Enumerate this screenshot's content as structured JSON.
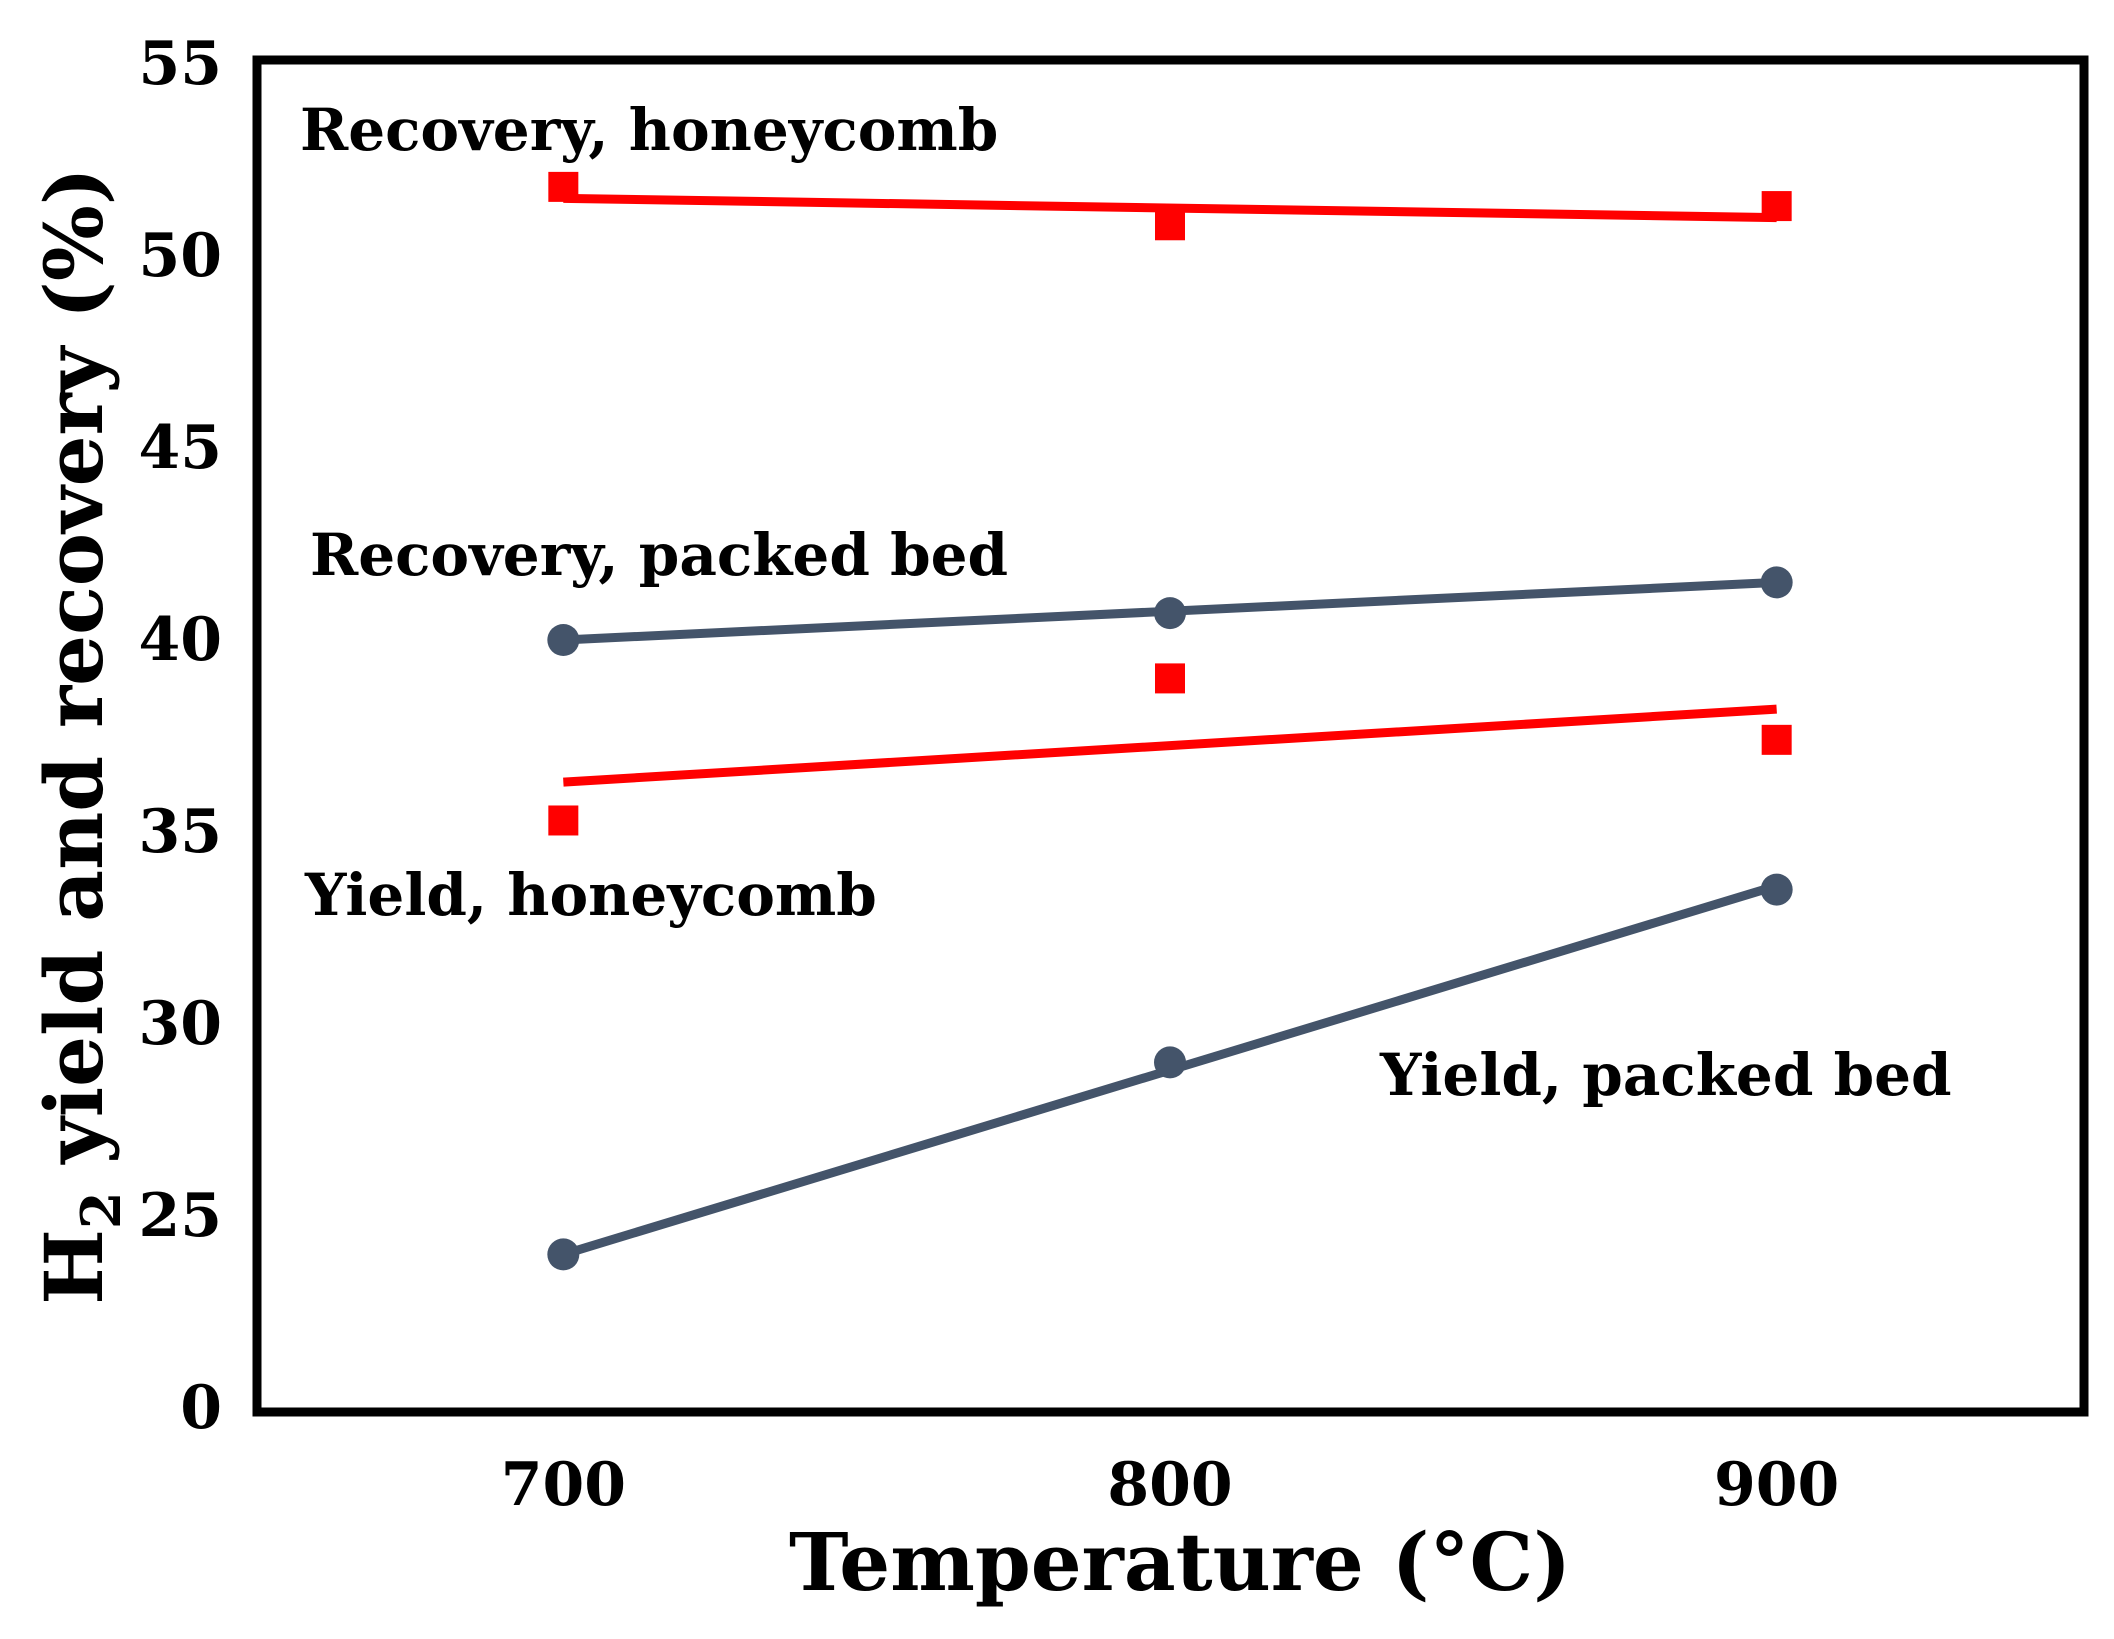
{
  "chart_data": {
    "type": "scatter",
    "title": "",
    "xlabel": "Temperature (°C)",
    "ylabel": {
      "prefix": "H",
      "subscript": "2",
      "suffix": " yield and recovery (%)"
    },
    "x_ticks": [
      "700",
      "800",
      "900"
    ],
    "y_ticks": [
      "0",
      "25",
      "30",
      "35",
      "40",
      "45",
      "50",
      "55"
    ],
    "y_axis_break": {
      "shown_as": "0",
      "at_position_of": 20
    },
    "xlim": [
      650,
      950
    ],
    "ylim": [
      20,
      55
    ],
    "series": [
      {
        "name": "Recovery, honeycomb",
        "marker": "square",
        "color": "#ff0000",
        "x": [
          700,
          800,
          900
        ],
        "y": [
          51.8,
          50.8,
          51.3
        ],
        "trend": {
          "x": [
            700,
            900
          ],
          "y": [
            51.5,
            51.0
          ]
        }
      },
      {
        "name": "Recovery, packed bed",
        "marker": "circle",
        "color": "#44546a",
        "x": [
          700,
          800,
          900
        ],
        "y": [
          40.0,
          40.7,
          41.5
        ],
        "trend": {
          "x": [
            700,
            900
          ],
          "y": [
            40.0,
            41.5
          ]
        }
      },
      {
        "name": "Yield, honeycomb",
        "marker": "square",
        "color": "#ff0000",
        "x": [
          700,
          800,
          900
        ],
        "y": [
          35.3,
          39.0,
          37.4
        ],
        "trend": {
          "x": [
            700,
            900
          ],
          "y": [
            36.3,
            38.2
          ]
        }
      },
      {
        "name": "Yield, packed bed",
        "marker": "circle",
        "color": "#44546a",
        "x": [
          700,
          800,
          900
        ],
        "y": [
          24.0,
          29.0,
          33.5
        ],
        "trend": {
          "x": [
            700,
            900
          ],
          "y": [
            24.0,
            33.6
          ]
        }
      }
    ],
    "annotations": [
      {
        "text": "Recovery, honeycomb",
        "series": 0
      },
      {
        "text": "Recovery, packed bed",
        "series": 1
      },
      {
        "text": "Yield, honeycomb",
        "series": 2
      },
      {
        "text": "Yield, packed bed",
        "series": 3
      }
    ],
    "grid": false,
    "legend": "none"
  }
}
